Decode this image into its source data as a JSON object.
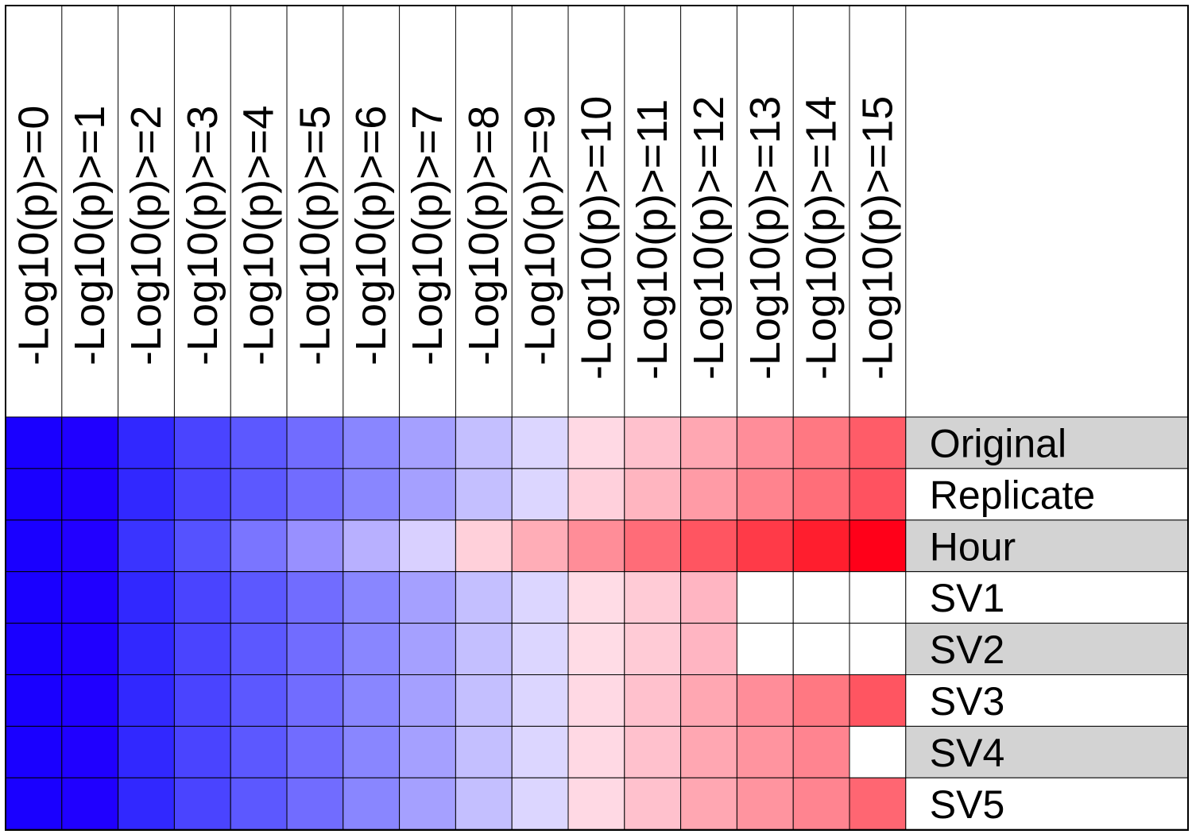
{
  "chart_data": {
    "type": "heatmap",
    "columns": [
      "-Log10(p)>=0",
      "-Log10(p)>=1",
      "-Log10(p)>=2",
      "-Log10(p)>=3",
      "-Log10(p)>=4",
      "-Log10(p)>=5",
      "-Log10(p)>=6",
      "-Log10(p)>=7",
      "-Log10(p)>=8",
      "-Log10(p)>=9",
      "-Log10(p)>=10",
      "-Log10(p)>=11",
      "-Log10(p)>=12",
      "-Log10(p)>=13",
      "-Log10(p)>=14",
      "-Log10(p)>=15"
    ],
    "rows": [
      "Original",
      "Replicate",
      "Hour",
      "SV1",
      "SV2",
      "SV3",
      "SV4",
      "SV5"
    ],
    "row_label_shading": [
      "#d3d3d3",
      "#ffffff",
      "#d3d3d3",
      "#ffffff",
      "#d3d3d3",
      "#ffffff",
      "#d3d3d3",
      "#ffffff"
    ],
    "cell_colors": [
      [
        "#1a00ff",
        "#2000ff",
        "#3128ff",
        "#4a44ff",
        "#5c58ff",
        "#716cff",
        "#8986ff",
        "#a5a0ff",
        "#c4bfff",
        "#dcd6ff",
        "#ffd9e4",
        "#ffc1cd",
        "#ffa7b2",
        "#ff8d99",
        "#ff7882",
        "#ff5c68"
      ],
      [
        "#1a00ff",
        "#2000ff",
        "#3128ff",
        "#4a44ff",
        "#5c58ff",
        "#716cff",
        "#8986ff",
        "#a5a0ff",
        "#c4bfff",
        "#dcd6ff",
        "#ffd0dc",
        "#ffb5c0",
        "#ff9ba6",
        "#ff838e",
        "#ff6e79",
        "#ff5260"
      ],
      [
        "#1a00ff",
        "#2200ff",
        "#3a34ff",
        "#5552ff",
        "#7a75ff",
        "#9890ff",
        "#b8b0ff",
        "#d9d0ff",
        "#ffd0da",
        "#ffadb7",
        "#ff8d98",
        "#ff6c78",
        "#ff5561",
        "#ff3a48",
        "#ff1e2e",
        "#ff0019"
      ],
      [
        "#1a00ff",
        "#2000ff",
        "#3128ff",
        "#4a44ff",
        "#5c58ff",
        "#716cff",
        "#8986ff",
        "#a5a0ff",
        "#c4bfff",
        "#dcd6ff",
        "#ffdce6",
        "#ffcbd6",
        "#ffb5c2",
        "#ffffff",
        "#ffffff",
        "#ffffff"
      ],
      [
        "#1a00ff",
        "#2000ff",
        "#3128ff",
        "#4a44ff",
        "#5c58ff",
        "#716cff",
        "#8986ff",
        "#a5a0ff",
        "#c4bfff",
        "#dcd6ff",
        "#ffdce6",
        "#ffcbd6",
        "#ffb5c2",
        "#ffffff",
        "#ffffff",
        "#ffffff"
      ],
      [
        "#1a00ff",
        "#2000ff",
        "#3128ff",
        "#4a44ff",
        "#5c58ff",
        "#716cff",
        "#8986ff",
        "#a5a0ff",
        "#c4bfff",
        "#dcd6ff",
        "#ffd9e4",
        "#ffc1cd",
        "#ffa7b2",
        "#ff8d99",
        "#ff7882",
        "#ff5561"
      ],
      [
        "#1a00ff",
        "#2000ff",
        "#3128ff",
        "#4a44ff",
        "#5c58ff",
        "#716cff",
        "#8986ff",
        "#a5a0ff",
        "#c4bfff",
        "#dcd6ff",
        "#ffd9e4",
        "#ffc1cd",
        "#ffa7b2",
        "#ff949f",
        "#ff8490",
        "#ffffff"
      ],
      [
        "#1a00ff",
        "#2000ff",
        "#3128ff",
        "#4a44ff",
        "#5c58ff",
        "#716cff",
        "#8986ff",
        "#a5a0ff",
        "#c4bfff",
        "#dcd6ff",
        "#ffd9e4",
        "#ffc1cd",
        "#ffa7b2",
        "#ff949f",
        "#ff8490",
        "#ff6672"
      ]
    ],
    "title": "",
    "xlabel": "",
    "ylabel": "",
    "legend": "none"
  }
}
